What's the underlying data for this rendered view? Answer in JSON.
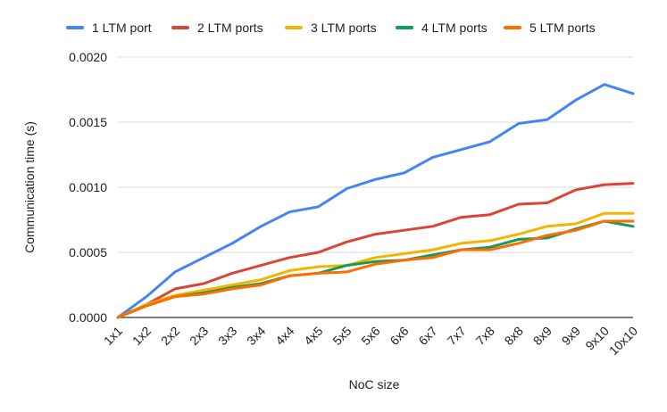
{
  "chart_data": {
    "type": "line",
    "title": "",
    "xlabel": "NoC size",
    "ylabel": "Communication time (s)",
    "ylim": [
      0,
      0.002
    ],
    "yticks": [
      "0.0000",
      "0.0005",
      "0.0010",
      "0.0015",
      "0.0020"
    ],
    "ytick_values": [
      0,
      0.0005,
      0.001,
      0.0015,
      0.002
    ],
    "grid": true,
    "legend_position": "top",
    "categories": [
      "1x1",
      "1x2",
      "2x2",
      "2x3",
      "3x3",
      "3x4",
      "4x4",
      "4x5",
      "5x5",
      "5x6",
      "6x6",
      "6x7",
      "7x7",
      "7x8",
      "8x8",
      "8x9",
      "9x9",
      "9x10",
      "10x10"
    ],
    "series": [
      {
        "name": "1 LTM port",
        "color": "#4285F4",
        "values": [
          0.0,
          0.00016,
          0.00035,
          0.00046,
          0.00057,
          0.0007,
          0.00081,
          0.00085,
          0.00099,
          0.00106,
          0.00111,
          0.00123,
          0.00129,
          0.00135,
          0.00149,
          0.00152,
          0.00167,
          0.00179,
          0.00172
        ]
      },
      {
        "name": "2 LTM ports",
        "color": "#DB4437",
        "values": [
          0.0,
          0.0001,
          0.00022,
          0.00026,
          0.00034,
          0.0004,
          0.00046,
          0.0005,
          0.00058,
          0.00064,
          0.00067,
          0.0007,
          0.00077,
          0.00079,
          0.00087,
          0.00088,
          0.00098,
          0.00102,
          0.00103
        ]
      },
      {
        "name": "3 LTM ports",
        "color": "#F4B400",
        "values": [
          0.0,
          0.0001,
          0.00017,
          0.00021,
          0.00025,
          0.00029,
          0.00036,
          0.00039,
          0.0004,
          0.00046,
          0.00049,
          0.00052,
          0.00057,
          0.00059,
          0.00064,
          0.0007,
          0.00072,
          0.0008,
          0.0008
        ]
      },
      {
        "name": "4 LTM ports",
        "color": "#0F9D58",
        "values": [
          0.0,
          9e-05,
          0.00016,
          0.00019,
          0.00023,
          0.00026,
          0.00032,
          0.00034,
          0.0004,
          0.00043,
          0.00044,
          0.00048,
          0.00052,
          0.00054,
          0.0006,
          0.00061,
          0.00068,
          0.00074,
          0.0007
        ]
      },
      {
        "name": "5 LTM ports",
        "color": "#FF6D01",
        "values": [
          0.0,
          9e-05,
          0.00016,
          0.00018,
          0.00022,
          0.00025,
          0.00032,
          0.00034,
          0.00035,
          0.00041,
          0.00044,
          0.00046,
          0.00052,
          0.00052,
          0.00057,
          0.00063,
          0.00067,
          0.00074,
          0.00074
        ]
      }
    ]
  }
}
